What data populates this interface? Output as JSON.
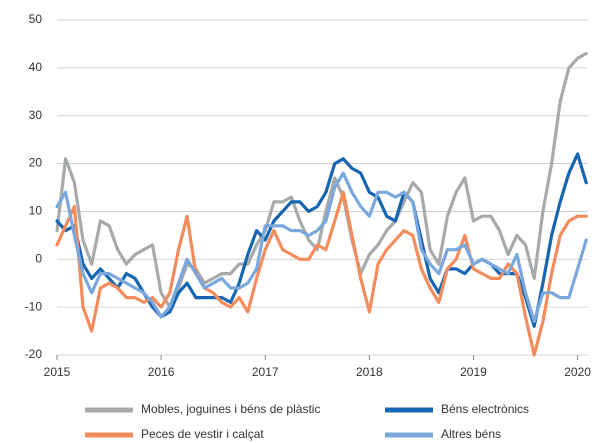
{
  "chart_data": {
    "type": "line",
    "x": [
      2015,
      2015.083,
      2015.167,
      2015.25,
      2015.333,
      2015.417,
      2015.5,
      2015.583,
      2015.667,
      2015.75,
      2015.833,
      2015.917,
      2016,
      2016.083,
      2016.167,
      2016.25,
      2016.333,
      2016.417,
      2016.5,
      2016.583,
      2016.667,
      2016.75,
      2016.833,
      2016.917,
      2017,
      2017.083,
      2017.167,
      2017.25,
      2017.333,
      2017.417,
      2017.5,
      2017.583,
      2017.667,
      2017.75,
      2017.833,
      2017.917,
      2018,
      2018.083,
      2018.167,
      2018.25,
      2018.333,
      2018.417,
      2018.5,
      2018.583,
      2018.667,
      2018.75,
      2018.833,
      2018.917,
      2019,
      2019.083,
      2019.167,
      2019.25,
      2019.333,
      2019.417,
      2019.5,
      2019.583,
      2019.667,
      2019.75,
      2019.833,
      2019.917,
      2020,
      2020.083
    ],
    "series": [
      {
        "name": "Mobles, joguines i béns de plàstic",
        "color": "#a6aaab",
        "values": [
          6,
          21,
          16,
          4,
          -1,
          8,
          7,
          2,
          -1,
          1,
          2,
          3,
          -7,
          -10,
          -6,
          -1,
          -2,
          -5,
          -4,
          -3,
          -3,
          -1,
          -1,
          3,
          6,
          12,
          12,
          13,
          8,
          4,
          2,
          10,
          17,
          13,
          4,
          -3,
          1,
          3,
          6,
          8,
          12,
          16,
          14,
          2,
          -1,
          9,
          14,
          17,
          8,
          9,
          9,
          6,
          1,
          5,
          3,
          -4,
          10,
          20,
          33,
          40,
          42,
          43
        ]
      },
      {
        "name": "Béns electrònics",
        "color": "#1565b0",
        "values": [
          8,
          6,
          7,
          -1,
          -4,
          -2,
          -4,
          -6,
          -3,
          -4,
          -7,
          -10,
          -12,
          -11,
          -7,
          -5,
          -8,
          -8,
          -8,
          -8,
          -9,
          -5,
          1,
          6,
          4,
          8,
          10,
          12,
          12,
          10,
          11,
          14,
          20,
          21,
          19,
          18,
          14,
          13,
          9,
          8,
          14,
          12,
          4,
          -4,
          -7,
          -2,
          -2,
          -3,
          -1,
          0,
          -1,
          -3,
          -3,
          -3,
          -8,
          -14,
          -5,
          5,
          12,
          18,
          22,
          16
        ]
      },
      {
        "name": "Peces de vestir i calçat",
        "color": "#f28c5c",
        "values": [
          3,
          7,
          11,
          -10,
          -15,
          -6,
          -5,
          -6,
          -8,
          -8,
          -9,
          -8,
          -10,
          -7,
          2,
          9,
          -3,
          -6,
          -7,
          -9,
          -10,
          -8,
          -11,
          -4,
          2,
          6,
          2,
          1,
          0,
          0,
          3,
          2,
          8,
          14,
          5,
          -4,
          -11,
          -1,
          2,
          4,
          6,
          5,
          -2,
          -6,
          -9,
          -2,
          0,
          5,
          -2,
          -3,
          -4,
          -4,
          -1,
          -3,
          -12,
          -20,
          -13,
          -3,
          5,
          8,
          9,
          9
        ]
      },
      {
        "name": "Altres béns",
        "color": "#7aa7dc",
        "values": [
          11,
          14,
          5,
          -3,
          -7,
          -3,
          -3,
          -4,
          -5,
          -6,
          -7,
          -9,
          -12,
          -10,
          -5,
          0,
          -3,
          -6,
          -5,
          -4,
          -6,
          -6,
          -5,
          -2,
          7,
          7,
          7,
          6,
          6,
          5,
          6,
          8,
          15,
          18,
          14,
          11,
          9,
          14,
          14,
          13,
          14,
          12,
          2,
          -1,
          -3,
          2,
          2,
          3,
          -1,
          0,
          -1,
          -2,
          -3,
          1,
          -7,
          -13,
          -7,
          -7,
          -8,
          -8,
          -2,
          4
        ]
      }
    ],
    "xlim": [
      2015,
      2020.1
    ],
    "xticks": [
      2015,
      2016,
      2017,
      2018,
      2019,
      2020
    ],
    "ylim": [
      -20,
      50
    ],
    "yticks": [
      -20,
      -10,
      0,
      10,
      20,
      30,
      40,
      50
    ],
    "grid": true,
    "legend": "bottom"
  }
}
